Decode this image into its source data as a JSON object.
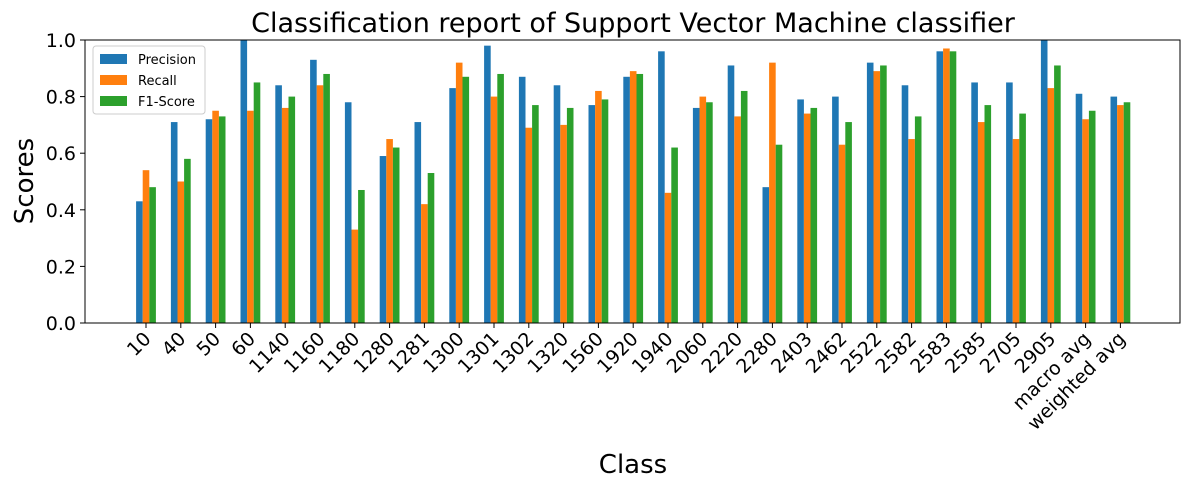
{
  "chart_data": {
    "type": "bar",
    "title": "Classification report of Support Vector Machine classifier",
    "xlabel": "Class",
    "ylabel": "Scores",
    "ylim": [
      0,
      1.0
    ],
    "yticks": [
      "0.0",
      "0.2",
      "0.4",
      "0.6",
      "0.8",
      "1.0"
    ],
    "grid": false,
    "legend_position": "top-left",
    "categories": [
      "10",
      "40",
      "50",
      "60",
      "1140",
      "1160",
      "1180",
      "1280",
      "1281",
      "1300",
      "1301",
      "1302",
      "1320",
      "1560",
      "1920",
      "1940",
      "2060",
      "2220",
      "2280",
      "2403",
      "2462",
      "2522",
      "2582",
      "2583",
      "2585",
      "2705",
      "2905",
      "macro avg",
      "weighted avg"
    ],
    "series": [
      {
        "name": "Precision",
        "color": "#1f77b4",
        "values": [
          0.43,
          0.71,
          0.72,
          1.0,
          0.84,
          0.93,
          0.78,
          0.59,
          0.71,
          0.83,
          0.98,
          0.87,
          0.84,
          0.77,
          0.87,
          0.96,
          0.76,
          0.91,
          0.48,
          0.79,
          0.8,
          0.92,
          0.84,
          0.96,
          0.85,
          0.85,
          1.0,
          0.81,
          0.8
        ]
      },
      {
        "name": "Recall",
        "color": "#ff7f0e",
        "values": [
          0.54,
          0.5,
          0.75,
          0.75,
          0.76,
          0.84,
          0.33,
          0.65,
          0.42,
          0.92,
          0.8,
          0.69,
          0.7,
          0.82,
          0.89,
          0.46,
          0.8,
          0.73,
          0.92,
          0.74,
          0.63,
          0.89,
          0.65,
          0.97,
          0.71,
          0.65,
          0.83,
          0.72,
          0.77
        ]
      },
      {
        "name": "F1-Score",
        "color": "#2ca02c",
        "values": [
          0.48,
          0.58,
          0.73,
          0.85,
          0.8,
          0.88,
          0.47,
          0.62,
          0.53,
          0.87,
          0.88,
          0.77,
          0.76,
          0.79,
          0.88,
          0.62,
          0.78,
          0.82,
          0.63,
          0.76,
          0.71,
          0.91,
          0.73,
          0.96,
          0.77,
          0.74,
          0.91,
          0.75,
          0.78
        ]
      }
    ]
  }
}
